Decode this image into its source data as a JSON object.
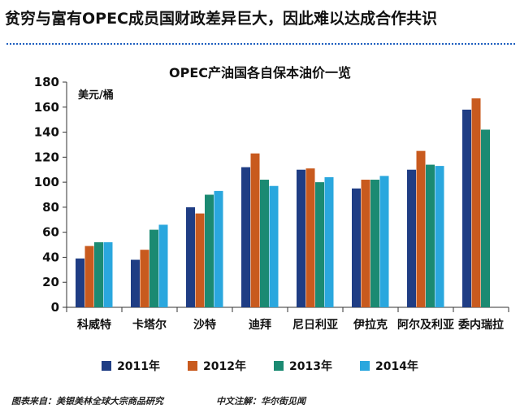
{
  "headline": "贫穷与富有OPEC成员国财政差异巨大，因此难以达成合作共识",
  "footer": {
    "source": "图表来自：美银美林全球大宗商品研究",
    "note": "中文注解：华尔街见闻"
  },
  "colors": {
    "rule": "#1f5fbf",
    "series": [
      "#1f3d84",
      "#c85a1e",
      "#1b8a72",
      "#2aa7de"
    ]
  },
  "chart_data": {
    "type": "bar",
    "title": "OPEC产油国各自保本油价一览",
    "ylabel": "美元/桶",
    "xlabel": "",
    "ylim": [
      0,
      180
    ],
    "yticks": [
      0,
      20,
      40,
      60,
      80,
      100,
      120,
      140,
      160,
      180
    ],
    "grid": false,
    "legend_position": "bottom",
    "categories": [
      "科威特",
      "卡塔尔",
      "沙特",
      "迪拜",
      "尼日利亚",
      "伊拉克",
      "阿尔及利亚",
      "委内瑞拉"
    ],
    "series": [
      {
        "name": "2011年",
        "values": [
          39,
          38,
          80,
          112,
          110,
          95,
          110,
          158
        ]
      },
      {
        "name": "2012年",
        "values": [
          49,
          46,
          75,
          123,
          111,
          102,
          125,
          167
        ]
      },
      {
        "name": "2013年",
        "values": [
          52,
          62,
          90,
          102,
          100,
          102,
          114,
          142
        ]
      },
      {
        "name": "2014年",
        "values": [
          52,
          66,
          93,
          97,
          104,
          105,
          113,
          null
        ]
      }
    ]
  }
}
